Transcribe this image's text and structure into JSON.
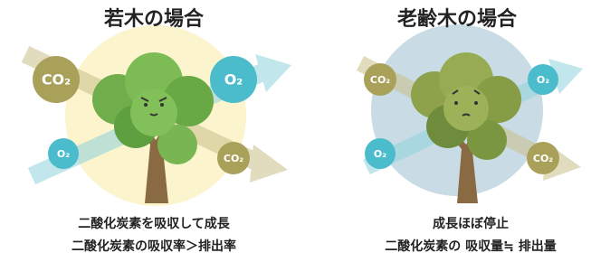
{
  "panels": [
    {
      "title": "若木の場合",
      "bubbles": [
        "CO₂",
        "O₂",
        "O₂",
        "CO₂"
      ],
      "caption": [
        "二酸化炭素を吸収して成長",
        "二酸化炭素の吸収率＞排出率"
      ]
    },
    {
      "title": "老齢木の場合",
      "bubbles": [
        "CO₂",
        "O₂",
        "O₂",
        "CO₂"
      ],
      "caption": [
        "成長ほぼ停止",
        "二酸化炭素の 吸収量≒ 排出量"
      ]
    }
  ]
}
